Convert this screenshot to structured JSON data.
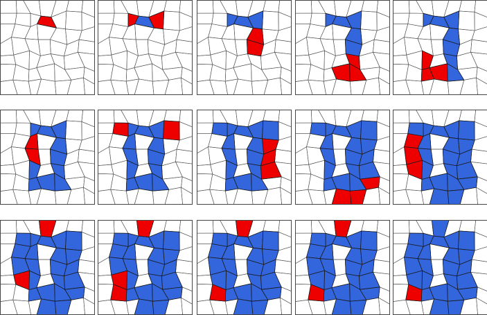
{
  "figure": {
    "rows": 3,
    "columns": 5,
    "panel_count": 15,
    "background_color": "#ffffff",
    "edge_color": "#555555",
    "colors": {
      "filled": "#3366dd",
      "active": "#ee0000"
    },
    "panels": [
      {
        "row": 1,
        "col": 1,
        "filled": 0,
        "active": 1
      },
      {
        "row": 1,
        "col": 2,
        "filled": 1,
        "active": 2
      },
      {
        "row": 1,
        "col": 3,
        "filled": 3,
        "active": 2
      },
      {
        "row": 1,
        "col": 4,
        "filled": 5,
        "active": 3
      },
      {
        "row": 1,
        "col": 5,
        "filled": 7,
        "active": 3
      },
      {
        "row": 2,
        "col": 1,
        "filled": 10,
        "active": 2
      },
      {
        "row": 2,
        "col": 2,
        "filled": 12,
        "active": 2
      },
      {
        "row": 2,
        "col": 3,
        "filled": 14,
        "active": 3
      },
      {
        "row": 2,
        "col": 4,
        "filled": 17,
        "active": 3
      },
      {
        "row": 2,
        "col": 5,
        "filled": 20,
        "active": 3
      },
      {
        "row": 3,
        "col": 1,
        "filled": 22,
        "active": 2
      },
      {
        "row": 3,
        "col": 2,
        "filled": 22,
        "active": 3
      },
      {
        "row": 3,
        "col": 3,
        "filled": 23,
        "active": 2
      },
      {
        "row": 3,
        "col": 4,
        "filled": 23,
        "active": 3
      },
      {
        "row": 3,
        "col": 5,
        "filled": 24,
        "active": 1
      }
    ]
  }
}
